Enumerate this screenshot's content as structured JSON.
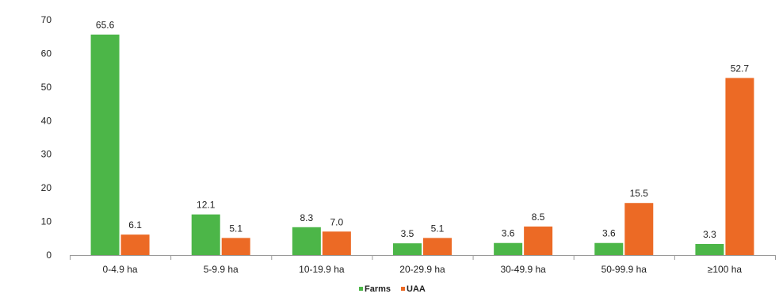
{
  "chart_data": {
    "type": "bar",
    "categories": [
      "0-4.9 ha",
      "5-9.9 ha",
      "10-19.9 ha",
      "20-29.9 ha",
      "30-49.9 ha",
      "50-99.9 ha",
      "≥100 ha"
    ],
    "series": [
      {
        "name": "Farms",
        "color": "#4cb648",
        "values": [
          65.6,
          12.1,
          8.3,
          3.5,
          3.6,
          3.6,
          3.3
        ],
        "labels": [
          "65.6",
          "12.1",
          "8.3",
          "3.5",
          "3.6",
          "3.6",
          "3.3"
        ]
      },
      {
        "name": "UAA",
        "color": "#ec6a25",
        "values": [
          6.1,
          5.1,
          7.0,
          5.1,
          8.5,
          15.5,
          52.7
        ],
        "labels": [
          "6.1",
          "5.1",
          "7.0",
          "5.1",
          "8.5",
          "15.5",
          "52.7"
        ]
      }
    ],
    "title": "",
    "xlabel": "",
    "ylabel": "",
    "ylim": [
      0,
      70
    ],
    "yticks": [
      "0",
      "10",
      "20",
      "30",
      "40",
      "50",
      "60",
      "70"
    ],
    "grid": false,
    "legend_position": "bottom"
  }
}
